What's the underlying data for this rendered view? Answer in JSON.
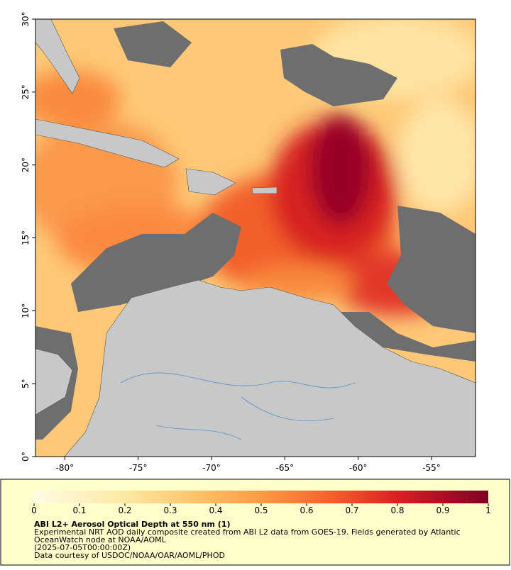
{
  "map": {
    "xlim": [
      -82,
      -52
    ],
    "ylim": [
      0,
      30
    ],
    "lon_ticks": [
      {
        "value": -80,
        "label": "-80°"
      },
      {
        "value": -75,
        "label": "-75°"
      },
      {
        "value": -70,
        "label": "-70°"
      },
      {
        "value": -65,
        "label": "-65°"
      },
      {
        "value": -60,
        "label": "-60°"
      },
      {
        "value": -55,
        "label": "-55°"
      }
    ],
    "lat_ticks": [
      {
        "value": 0,
        "label": "0°"
      },
      {
        "value": 5,
        "label": "5°"
      },
      {
        "value": 10,
        "label": "10°"
      },
      {
        "value": 15,
        "label": "15°"
      },
      {
        "value": 20,
        "label": "20°"
      },
      {
        "value": 25,
        "label": "25°"
      },
      {
        "value": 30,
        "label": "30°"
      }
    ]
  },
  "colorbar": {
    "range": [
      0,
      1
    ],
    "ticks": [
      0,
      0.1,
      0.2,
      0.3,
      0.4,
      0.5,
      0.6,
      0.7,
      0.8,
      0.9,
      1
    ]
  },
  "caption": {
    "title": "ABI L2+ Aerosol Optical Depth at 550 nm (1)",
    "lines": [
      "Experimental NRT AOD daily composite created from ABI L2 data from GOES-19. Fields generated by Atlantic",
      "OceanWatch node at NOAA/AOML",
      "(2025-07-05T00:00:00Z)",
      "Data courtesy of USDOC/NOAA/OAR/AOML/PHOD"
    ]
  }
}
